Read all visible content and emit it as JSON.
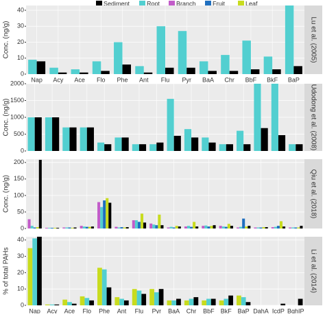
{
  "legend": [
    {
      "name": "Sediment",
      "color": "#000000"
    },
    {
      "name": "Root",
      "color": "#52cfd0"
    },
    {
      "name": "Branch",
      "color": "#c25cc9"
    },
    {
      "name": "Fruit",
      "color": "#1f6fbf"
    },
    {
      "name": "Leaf",
      "color": "#c8dc1e"
    }
  ],
  "chart_data": [
    {
      "type": "bar",
      "strip": "Lu et al. (2005)",
      "ylabel": "Conc. (ng/g)",
      "categories": [
        "Nap",
        "Acy",
        "Ace",
        "Flo",
        "Phe",
        "Ant",
        "Flu",
        "Pyr",
        "BaA",
        "Chr",
        "BbF",
        "BkF",
        "BaP"
      ],
      "ylim": [
        0,
        43
      ],
      "yticks": [
        0,
        10,
        20,
        30,
        40
      ],
      "grid": true,
      "series": [
        {
          "name": "Root",
          "color": "#52cfd0",
          "values": [
            9,
            4,
            3,
            8,
            20,
            5,
            30,
            27,
            8,
            12,
            21,
            11,
            43
          ]
        },
        {
          "name": "Sediment",
          "color": "#000000",
          "values": [
            8,
            1,
            1,
            2,
            6,
            1,
            4,
            4,
            2,
            2,
            3,
            3,
            5
          ]
        }
      ]
    },
    {
      "type": "bar",
      "strip": "Udodong et al. (2008)",
      "ylabel": "Conc. (ng/g)",
      "ylim": [
        0,
        2000
      ],
      "yticks": [
        0,
        500,
        1000,
        1500,
        2000
      ],
      "grid": true,
      "series": [
        {
          "name": "Root",
          "color": "#52cfd0",
          "values": [
            1000,
            1000,
            700,
            700,
            250,
            400,
            200,
            200,
            1550,
            650,
            400,
            200,
            600,
            2000,
            2000,
            200
          ]
        },
        {
          "name": "Sediment",
          "color": "#000000",
          "values": [
            1000,
            1000,
            700,
            700,
            200,
            400,
            200,
            250,
            450,
            400,
            250,
            200,
            200,
            680,
            470,
            200
          ]
        }
      ]
    },
    {
      "type": "bar",
      "strip": "Qiu et al. (2018)",
      "ylabel": "Conc. (ng/g)",
      "ylim": [
        0,
        210
      ],
      "yticks": [
        0,
        50,
        100,
        150,
        200
      ],
      "grid": true,
      "series": [
        {
          "name": "Branch",
          "color": "#c25cc9",
          "values": [
            28,
            2,
            3,
            8,
            80,
            5,
            25,
            15,
            3,
            6,
            8,
            8,
            3,
            3,
            4,
            3
          ]
        },
        {
          "name": "Root",
          "color": "#52cfd0",
          "values": [
            8,
            2,
            3,
            6,
            65,
            3,
            25,
            12,
            5,
            8,
            9,
            6,
            5,
            3,
            5,
            3
          ]
        },
        {
          "name": "Fruit",
          "color": "#1f6fbf",
          "values": [
            3,
            2,
            3,
            5,
            85,
            4,
            20,
            10,
            3,
            5,
            6,
            5,
            30,
            3,
            8,
            3
          ]
        },
        {
          "name": "Leaf",
          "color": "#c8dc1e",
          "values": [
            4,
            2,
            2,
            5,
            92,
            3,
            45,
            42,
            8,
            20,
            8,
            14,
            6,
            4,
            22,
            3
          ]
        },
        {
          "name": "Sediment",
          "color": "#000000",
          "values": [
            208,
            2,
            3,
            6,
            78,
            4,
            18,
            10,
            6,
            6,
            10,
            8,
            8,
            4,
            6,
            8
          ]
        }
      ]
    },
    {
      "type": "bar",
      "strip": "Li et al. (2014)",
      "ylabel": "% of total PAHs",
      "categories": [
        "Nap",
        "Acy",
        "Ace",
        "Flo",
        "Phe",
        "Ant",
        "Flu",
        "Pyr",
        "BaA",
        "Chr",
        "BbF",
        "BkF",
        "BaP",
        "DahA",
        "IcdP",
        "BghIP"
      ],
      "ylim": [
        0,
        42
      ],
      "yticks": [
        0,
        10,
        20,
        30,
        40
      ],
      "grid": true,
      "series": [
        {
          "name": "Leaf",
          "color": "#c8dc1e",
          "values": [
            35,
            0.5,
            3.5,
            5.5,
            23,
            5,
            10,
            10,
            3,
            3,
            3,
            3,
            6,
            0,
            0,
            0
          ]
        },
        {
          "name": "Root",
          "color": "#52cfd0",
          "values": [
            41,
            0.5,
            2,
            4.5,
            22,
            4,
            9,
            8,
            3,
            4,
            4,
            4,
            5,
            0,
            0,
            0
          ]
        },
        {
          "name": "Sediment",
          "color": "#000000",
          "values": [
            42,
            0.5,
            1,
            3,
            11,
            3,
            7,
            10,
            4,
            5,
            4,
            6,
            2,
            0,
            1,
            4
          ]
        }
      ]
    }
  ]
}
